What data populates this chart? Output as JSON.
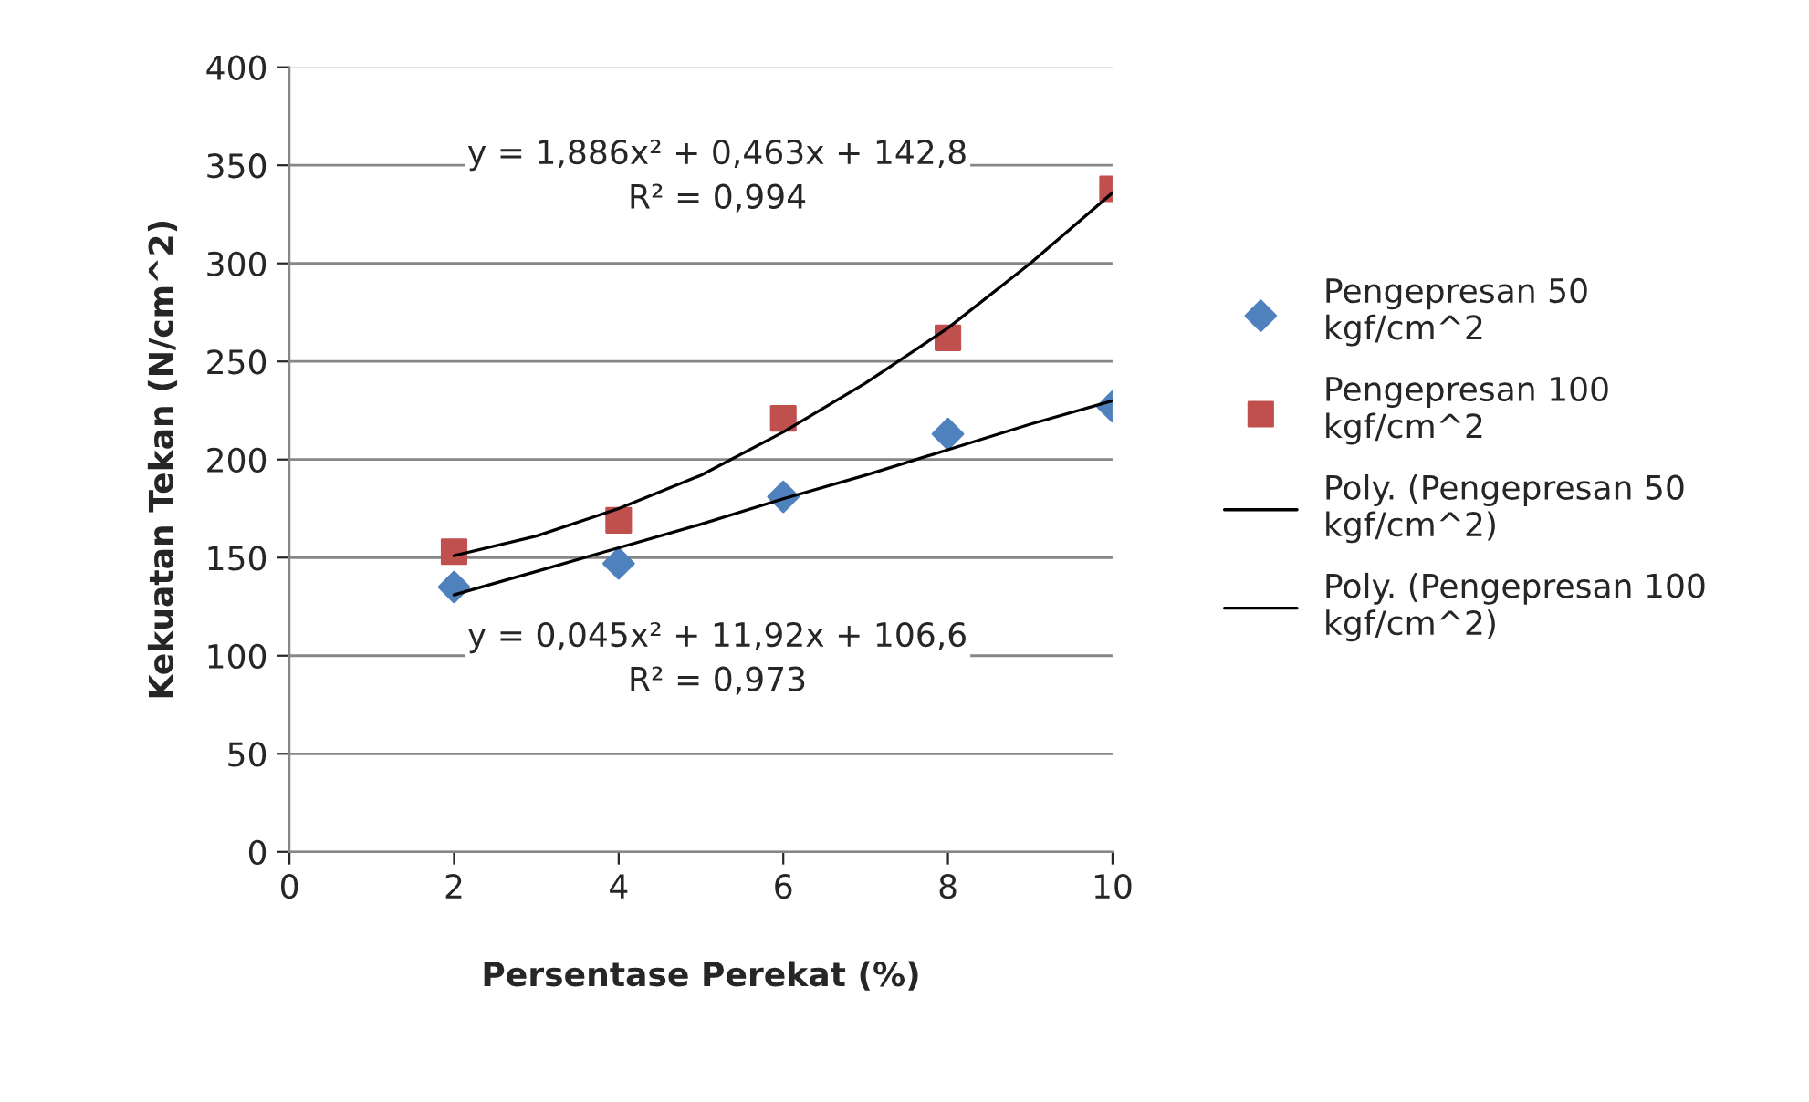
{
  "chart_data": {
    "type": "scatter",
    "xlabel": "Persentase Perekat (%)",
    "ylabel": "Kekuatan Tekan (N/cm^2)",
    "xlim": [
      0,
      10
    ],
    "xticks": [
      0,
      2,
      4,
      6,
      8,
      10
    ],
    "ylim": [
      0,
      400
    ],
    "yticks": [
      0,
      50,
      100,
      150,
      200,
      250,
      300,
      350,
      400
    ],
    "grid": "y",
    "legend": "right",
    "series": [
      {
        "name": "Pengepresan 50\nkgf/cm^2",
        "marker": "diamond",
        "color": "#4f81bd",
        "x": [
          2,
          4,
          6,
          8,
          10
        ],
        "values": [
          135,
          147,
          181,
          213,
          227
        ]
      },
      {
        "name": "Pengepresan 100\nkgf/cm^2",
        "marker": "square",
        "color": "#c0504d",
        "x": [
          2,
          4,
          6,
          8,
          10
        ],
        "values": [
          153,
          169,
          221,
          262,
          338
        ]
      },
      {
        "name": "Poly. (Pengepresan 50\nkgf/cm^2)",
        "type": "line",
        "marker": "none",
        "line_style": "solid",
        "color": "#000000",
        "x": [
          2,
          3,
          4,
          5,
          6,
          7,
          8,
          9,
          10
        ],
        "values": [
          131,
          143,
          155,
          167,
          180,
          192,
          205,
          218,
          230
        ]
      },
      {
        "name": "Poly. (Pengepresan 100\nkgf/cm^2)",
        "type": "line",
        "marker": "none",
        "line_style": "solid",
        "color": "#000000",
        "x": [
          2,
          3,
          4,
          5,
          6,
          7,
          8,
          9,
          10
        ],
        "values": [
          151,
          161,
          175,
          192,
          214,
          239,
          267,
          300,
          336
        ]
      }
    ],
    "annotations": [
      "y = 1,886x² + 0,463x + 142,8\nR² = 0,994",
      "y = 0,045x² + 11,92x + 106,6\nR² = 0,973"
    ]
  }
}
